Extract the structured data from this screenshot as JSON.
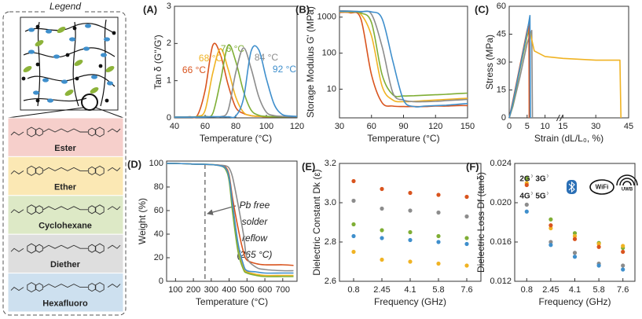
{
  "legend_panel": {
    "title": "Legend",
    "items": [
      "Ester",
      "Ether",
      "Cyclohexane",
      "Diether",
      "Hexafluoro"
    ]
  },
  "chart_data": [
    {
      "type": "line",
      "label": "(A)",
      "xlabel": "Temperature (°C)",
      "ylabel": "Tan δ (G''/G')",
      "x": [
        40,
        45,
        50,
        55,
        60,
        65,
        70,
        75,
        80,
        85,
        90,
        95,
        100,
        105,
        110,
        115,
        120
      ],
      "xlim": [
        40,
        120
      ],
      "xticks": [
        40,
        60,
        80,
        100,
        120
      ],
      "ylim": [
        0,
        3
      ],
      "yticks": [
        0,
        1,
        2,
        3
      ],
      "series": [
        {
          "name": "66 °C",
          "color": "#d9541e",
          "values": [
            0.02,
            0.02,
            0.03,
            0.07,
            0.74,
            1.95,
            1.7,
            0.89,
            0.28,
            0.12,
            0.06,
            0.04,
            0.03,
            0.03,
            0.03,
            0.03,
            0.03
          ]
        },
        {
          "name": "68 °C",
          "color": "#f0b323",
          "values": [
            0.02,
            0.02,
            0.02,
            0.04,
            0.2,
            1.21,
            1.86,
            1.31,
            0.56,
            0.15,
            0.06,
            0.04,
            0.03,
            0.03,
            0.03,
            0.03,
            0.03
          ]
        },
        {
          "name": "76 °C",
          "color": "#7fae35",
          "values": [
            0.02,
            0.02,
            0.02,
            0.03,
            0.04,
            0.12,
            0.98,
            1.95,
            1.52,
            0.72,
            0.21,
            0.07,
            0.04,
            0.03,
            0.03,
            0.03,
            0.03
          ]
        },
        {
          "name": "84 °C",
          "color": "#8c8c8c",
          "values": [
            0.02,
            0.02,
            0.02,
            0.02,
            0.03,
            0.03,
            0.03,
            0.2,
            1.22,
            1.88,
            1.33,
            0.57,
            0.15,
            0.06,
            0.04,
            0.03,
            0.03
          ]
        },
        {
          "name": "92 °C",
          "color": "#3f8fcc",
          "values": [
            0.02,
            0.02,
            0.02,
            0.02,
            0.02,
            0.03,
            0.03,
            0.03,
            0.05,
            0.51,
            1.79,
            1.83,
            1.05,
            0.37,
            0.1,
            0.05,
            0.04
          ]
        }
      ]
    },
    {
      "type": "line",
      "label": "(B)",
      "xlabel": "Temperature (°C)",
      "ylabel": "Storage Modulus G' (MPa)",
      "ylog": true,
      "x": [
        30,
        40,
        50,
        60,
        70,
        80,
        90,
        100,
        110,
        120,
        130,
        140,
        150
      ],
      "xlim": [
        30,
        150
      ],
      "xticks": [
        30,
        60,
        90,
        120,
        150
      ],
      "ylim": [
        1.6,
        2000
      ],
      "yticks": [
        10,
        100,
        1000
      ],
      "series": [
        {
          "color": "#d9541e",
          "values": [
            1350,
            1320,
            900,
            25,
            4.2,
            3.4,
            3.3,
            3.3,
            3.3,
            3.4,
            3.4,
            3.5,
            3.5
          ]
        },
        {
          "color": "#f0b323",
          "values": [
            1400,
            1380,
            1200,
            300,
            12,
            5,
            4.5,
            4.6,
            4.8,
            5,
            5.2,
            5.4,
            5.6
          ]
        },
        {
          "color": "#7fae35",
          "values": [
            1450,
            1420,
            1300,
            700,
            25,
            7,
            6.5,
            6.6,
            6.8,
            7,
            7.2,
            7.5,
            7.8
          ]
        },
        {
          "color": "#8c8c8c",
          "values": [
            1500,
            1480,
            1400,
            1200,
            150,
            8,
            5,
            4.5,
            4.5,
            4.6,
            4.8,
            5,
            5.2
          ]
        },
        {
          "color": "#3f8fcc",
          "values": [
            1450,
            1450,
            1430,
            1400,
            900,
            60,
            5,
            3.3,
            3.4,
            3.5,
            3.6,
            3.8,
            4
          ]
        }
      ]
    },
    {
      "type": "line",
      "label": "(C)",
      "xlabel": "Strain (dL/L₀, %)",
      "ylabel": "Stress (MPa)",
      "xlim": [
        0,
        45
      ],
      "xticks": [
        0,
        5,
        10,
        15,
        30,
        45
      ],
      "ylim": [
        0,
        60
      ],
      "yticks": [
        0,
        15,
        30,
        45,
        60
      ],
      "series": [
        {
          "color": "#8c8c8c",
          "x": [
            0,
            1,
            3,
            5,
            6.3,
            6.5
          ],
          "values": [
            0,
            6,
            22,
            40,
            47,
            0
          ]
        },
        {
          "color": "#7fae35",
          "x": [
            0,
            1,
            3,
            5,
            5.7,
            5.8
          ],
          "values": [
            0,
            7,
            26,
            44,
            48,
            0
          ]
        },
        {
          "color": "#f0b323",
          "x": [
            0,
            1,
            3,
            5,
            5.5,
            7,
            10,
            15,
            30,
            41,
            41.5
          ],
          "values": [
            0,
            8,
            27,
            45,
            49,
            36,
            33,
            32,
            31,
            31,
            0
          ]
        },
        {
          "color": "#d9541e",
          "x": [
            0,
            1,
            3,
            5,
            5.5,
            5.6
          ],
          "values": [
            0,
            9,
            28,
            47,
            51,
            0
          ]
        },
        {
          "color": "#3f8fcc",
          "x": [
            0,
            1,
            3,
            5,
            5.8,
            5.9
          ],
          "values": [
            0,
            8,
            27,
            46,
            55,
            0
          ]
        }
      ]
    },
    {
      "type": "line",
      "label": "(D)",
      "xlabel": "Temperature (°C)",
      "ylabel": "Weight (%)",
      "x": [
        50,
        100,
        200,
        300,
        350,
        380,
        400,
        420,
        450,
        480,
        500,
        550,
        600,
        700,
        760
      ],
      "xlim": [
        50,
        780
      ],
      "xticks": [
        100,
        200,
        300,
        400,
        500,
        600,
        700
      ],
      "ylim": [
        0,
        102
      ],
      "yticks": [
        0,
        20,
        40,
        60,
        80,
        100
      ],
      "vline": 265,
      "annotation": [
        "Pb free",
        "solder",
        "reflow",
        "(265 °C)"
      ],
      "series": [
        {
          "color": "#d9541e",
          "values": [
            100,
            100,
            99.5,
            99,
            98.5,
            97,
            90,
            70,
            45,
            25,
            18,
            15,
            14,
            14,
            13.5
          ]
        },
        {
          "color": "#f0b323",
          "values": [
            100,
            100,
            99.5,
            99,
            98,
            96,
            88,
            62,
            30,
            12,
            8,
            6,
            5,
            5,
            5
          ]
        },
        {
          "color": "#7fae35",
          "values": [
            100,
            100,
            99.5,
            99,
            98,
            95,
            85,
            58,
            25,
            10,
            7,
            5,
            4,
            4,
            4
          ]
        },
        {
          "color": "#8c8c8c",
          "values": [
            100,
            100,
            99.5,
            99,
            98.5,
            98,
            96,
            88,
            65,
            40,
            20,
            12,
            10,
            9,
            9
          ]
        },
        {
          "color": "#3f8fcc",
          "values": [
            100,
            100,
            99.5,
            99,
            98,
            96,
            88,
            65,
            32,
            14,
            9,
            8,
            7,
            7,
            7
          ]
        }
      ]
    },
    {
      "type": "scatter",
      "label": "(E)",
      "xlabel": "Frequency (GHz)",
      "ylabel": "Dielectric Constant Dk (ε)",
      "categories": [
        "0.8",
        "2.45",
        "4.1",
        "5.8",
        "7.6"
      ],
      "ylim": [
        2.6,
        3.2
      ],
      "yticks": [
        2.6,
        2.8,
        {
          "value": 3,
          "label": "3.0"
        },
        3.2
      ],
      "series": [
        {
          "color": "#d9541e",
          "values": [
            3.11,
            3.07,
            3.05,
            3.04,
            3.03
          ]
        },
        {
          "color": "#8c8c8c",
          "values": [
            3.01,
            2.97,
            2.96,
            2.95,
            2.93
          ]
        },
        {
          "color": "#7fae35",
          "values": [
            2.89,
            2.86,
            2.85,
            2.83,
            2.82
          ]
        },
        {
          "color": "#3f8fcc",
          "values": [
            2.83,
            2.82,
            2.81,
            2.8,
            2.79
          ]
        },
        {
          "color": "#f0b323",
          "values": [
            2.75,
            2.71,
            2.7,
            2.69,
            2.68
          ]
        }
      ]
    },
    {
      "type": "scatter",
      "label": "(F)",
      "xlabel": "Frequency (GHz)",
      "ylabel": "Dielectric Loss Df (tanδ)",
      "categories": [
        "0.8",
        "2.45",
        "4.1",
        "5.8",
        "7.6"
      ],
      "ylim": [
        0.012,
        0.024
      ],
      "yticks": [
        0.012,
        0.016,
        {
          "value": 0.02,
          "label": "0.020"
        },
        0.024
      ],
      "icons": [
        "2G",
        "3G",
        "4G",
        "5G",
        "WiFi",
        "UWB"
      ],
      "series": [
        {
          "color": "#7fae35",
          "values": [
            0.0225,
            0.0183,
            0.0169,
            0.0159,
            0.0154
          ]
        },
        {
          "color": "#f0b323",
          "values": [
            0.022,
            0.0174,
            0.0166,
            0.0158,
            0.0156
          ]
        },
        {
          "color": "#d9541e",
          "values": [
            0.0218,
            0.0177,
            0.0163,
            0.0155,
            0.015
          ]
        },
        {
          "color": "#8c8c8c",
          "values": [
            0.0198,
            0.016,
            0.0149,
            0.0138,
            0.0136
          ]
        },
        {
          "color": "#3f8fcc",
          "values": [
            0.0191,
            0.0157,
            0.0145,
            0.0136,
            0.0132
          ]
        }
      ]
    }
  ]
}
